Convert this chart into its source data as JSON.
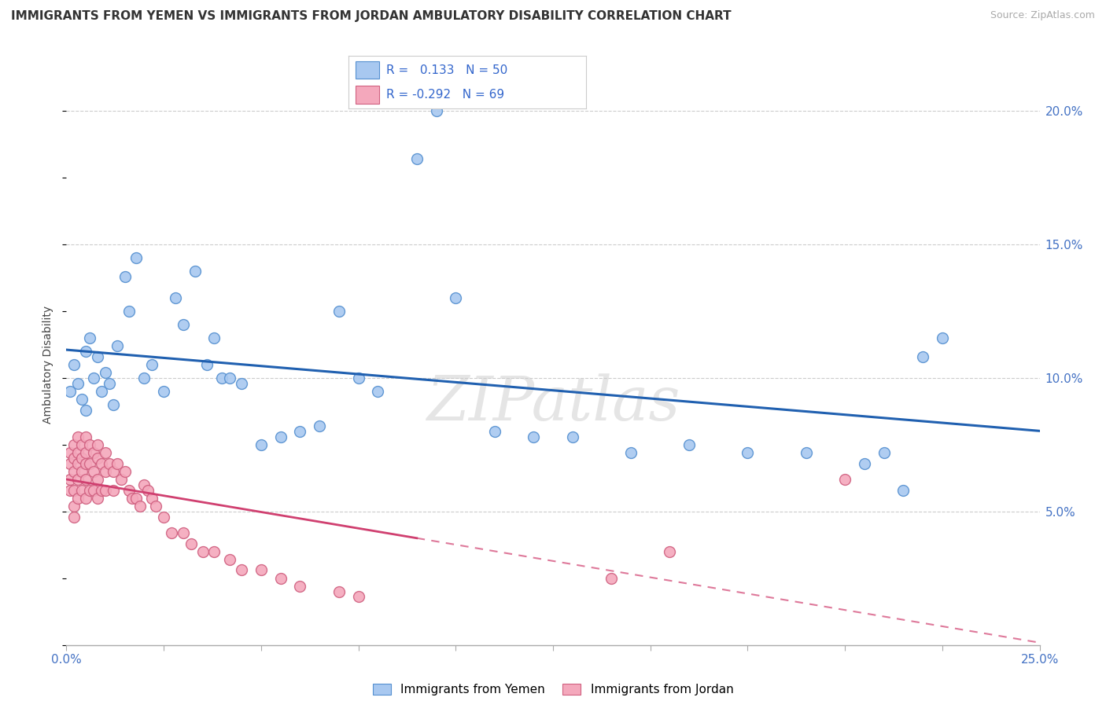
{
  "title": "IMMIGRANTS FROM YEMEN VS IMMIGRANTS FROM JORDAN AMBULATORY DISABILITY CORRELATION CHART",
  "source": "Source: ZipAtlas.com",
  "ylabel": "Ambulatory Disability",
  "xmin": 0.0,
  "xmax": 0.25,
  "ymin": 0.0,
  "ymax": 0.21,
  "yticks": [
    0.05,
    0.1,
    0.15,
    0.2
  ],
  "ytick_labels": [
    "5.0%",
    "10.0%",
    "15.0%",
    "20.0%"
  ],
  "watermark": "ZIPatlas",
  "color_yemen": "#A8C8F0",
  "color_jordan": "#F4A8BC",
  "color_edge_yemen": "#5590D0",
  "color_edge_jordan": "#D06080",
  "color_line_yemen": "#2060B0",
  "color_line_jordan": "#D04070",
  "background_color": "#ffffff",
  "yemen_x": [
    0.001,
    0.002,
    0.003,
    0.004,
    0.005,
    0.005,
    0.006,
    0.007,
    0.008,
    0.009,
    0.01,
    0.011,
    0.012,
    0.013,
    0.015,
    0.016,
    0.018,
    0.02,
    0.022,
    0.025,
    0.028,
    0.03,
    0.033,
    0.036,
    0.038,
    0.04,
    0.042,
    0.045,
    0.05,
    0.055,
    0.06,
    0.065,
    0.07,
    0.075,
    0.08,
    0.09,
    0.095,
    0.1,
    0.11,
    0.12,
    0.13,
    0.145,
    0.16,
    0.175,
    0.19,
    0.205,
    0.21,
    0.215,
    0.22,
    0.225
  ],
  "yemen_y": [
    0.095,
    0.105,
    0.098,
    0.092,
    0.11,
    0.088,
    0.115,
    0.1,
    0.108,
    0.095,
    0.102,
    0.098,
    0.09,
    0.112,
    0.138,
    0.125,
    0.145,
    0.1,
    0.105,
    0.095,
    0.13,
    0.12,
    0.14,
    0.105,
    0.115,
    0.1,
    0.1,
    0.098,
    0.075,
    0.078,
    0.08,
    0.082,
    0.125,
    0.1,
    0.095,
    0.182,
    0.2,
    0.13,
    0.08,
    0.078,
    0.078,
    0.072,
    0.075,
    0.072,
    0.072,
    0.068,
    0.072,
    0.058,
    0.108,
    0.115
  ],
  "jordan_x": [
    0.001,
    0.001,
    0.001,
    0.001,
    0.002,
    0.002,
    0.002,
    0.002,
    0.002,
    0.002,
    0.003,
    0.003,
    0.003,
    0.003,
    0.003,
    0.004,
    0.004,
    0.004,
    0.004,
    0.005,
    0.005,
    0.005,
    0.005,
    0.005,
    0.006,
    0.006,
    0.006,
    0.007,
    0.007,
    0.007,
    0.008,
    0.008,
    0.008,
    0.008,
    0.009,
    0.009,
    0.01,
    0.01,
    0.01,
    0.011,
    0.012,
    0.012,
    0.013,
    0.014,
    0.015,
    0.016,
    0.017,
    0.018,
    0.019,
    0.02,
    0.021,
    0.022,
    0.023,
    0.025,
    0.027,
    0.03,
    0.032,
    0.035,
    0.038,
    0.042,
    0.045,
    0.05,
    0.055,
    0.06,
    0.07,
    0.075,
    0.14,
    0.155,
    0.2
  ],
  "jordan_y": [
    0.072,
    0.068,
    0.062,
    0.058,
    0.075,
    0.07,
    0.065,
    0.058,
    0.052,
    0.048,
    0.078,
    0.072,
    0.068,
    0.062,
    0.055,
    0.075,
    0.07,
    0.065,
    0.058,
    0.078,
    0.072,
    0.068,
    0.062,
    0.055,
    0.075,
    0.068,
    0.058,
    0.072,
    0.065,
    0.058,
    0.075,
    0.07,
    0.062,
    0.055,
    0.068,
    0.058,
    0.072,
    0.065,
    0.058,
    0.068,
    0.065,
    0.058,
    0.068,
    0.062,
    0.065,
    0.058,
    0.055,
    0.055,
    0.052,
    0.06,
    0.058,
    0.055,
    0.052,
    0.048,
    0.042,
    0.042,
    0.038,
    0.035,
    0.035,
    0.032,
    0.028,
    0.028,
    0.025,
    0.022,
    0.02,
    0.018,
    0.025,
    0.035,
    0.062
  ]
}
